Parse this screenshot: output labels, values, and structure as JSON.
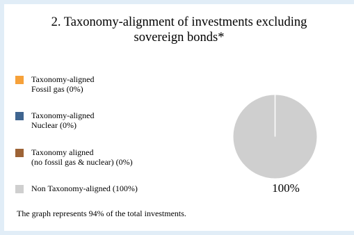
{
  "title": {
    "line1": "2. Taxonomy-alignment of investments excluding",
    "line2": "sovereign bonds*"
  },
  "colors": {
    "fossil_gas": "#f6a13a",
    "nuclear": "#3f6590",
    "no_fossil_gas_nuclear": "#9d6336",
    "non_aligned": "#cfcfcf",
    "background": "#e1edf7"
  },
  "legend": [
    {
      "line1": "Taxonomy-aligned",
      "line2": "Fossil gas (0%)"
    },
    {
      "line1": "Taxonomy-aligned",
      "line2": "Nuclear (0%)"
    },
    {
      "line1": "Taxonomy aligned",
      "line2": "(no fossil gas & nuclear) (0%)"
    },
    {
      "line1": "Non Taxonomy-aligned (100%)",
      "line2": ""
    }
  ],
  "chart_data": {
    "type": "pie",
    "categories": [
      "Taxonomy-aligned Fossil gas",
      "Taxonomy-aligned Nuclear",
      "Taxonomy aligned (no fossil gas & nuclear)",
      "Non Taxonomy-aligned"
    ],
    "values": [
      0,
      0,
      0,
      100
    ],
    "units": "%",
    "title": "2. Taxonomy-alignment of investments excluding sovereign bonds*",
    "data_labels": [
      "100%"
    ],
    "legend_position": "left"
  },
  "pie_label": "100%",
  "footnote": "The graph represents 94% of the total investments."
}
